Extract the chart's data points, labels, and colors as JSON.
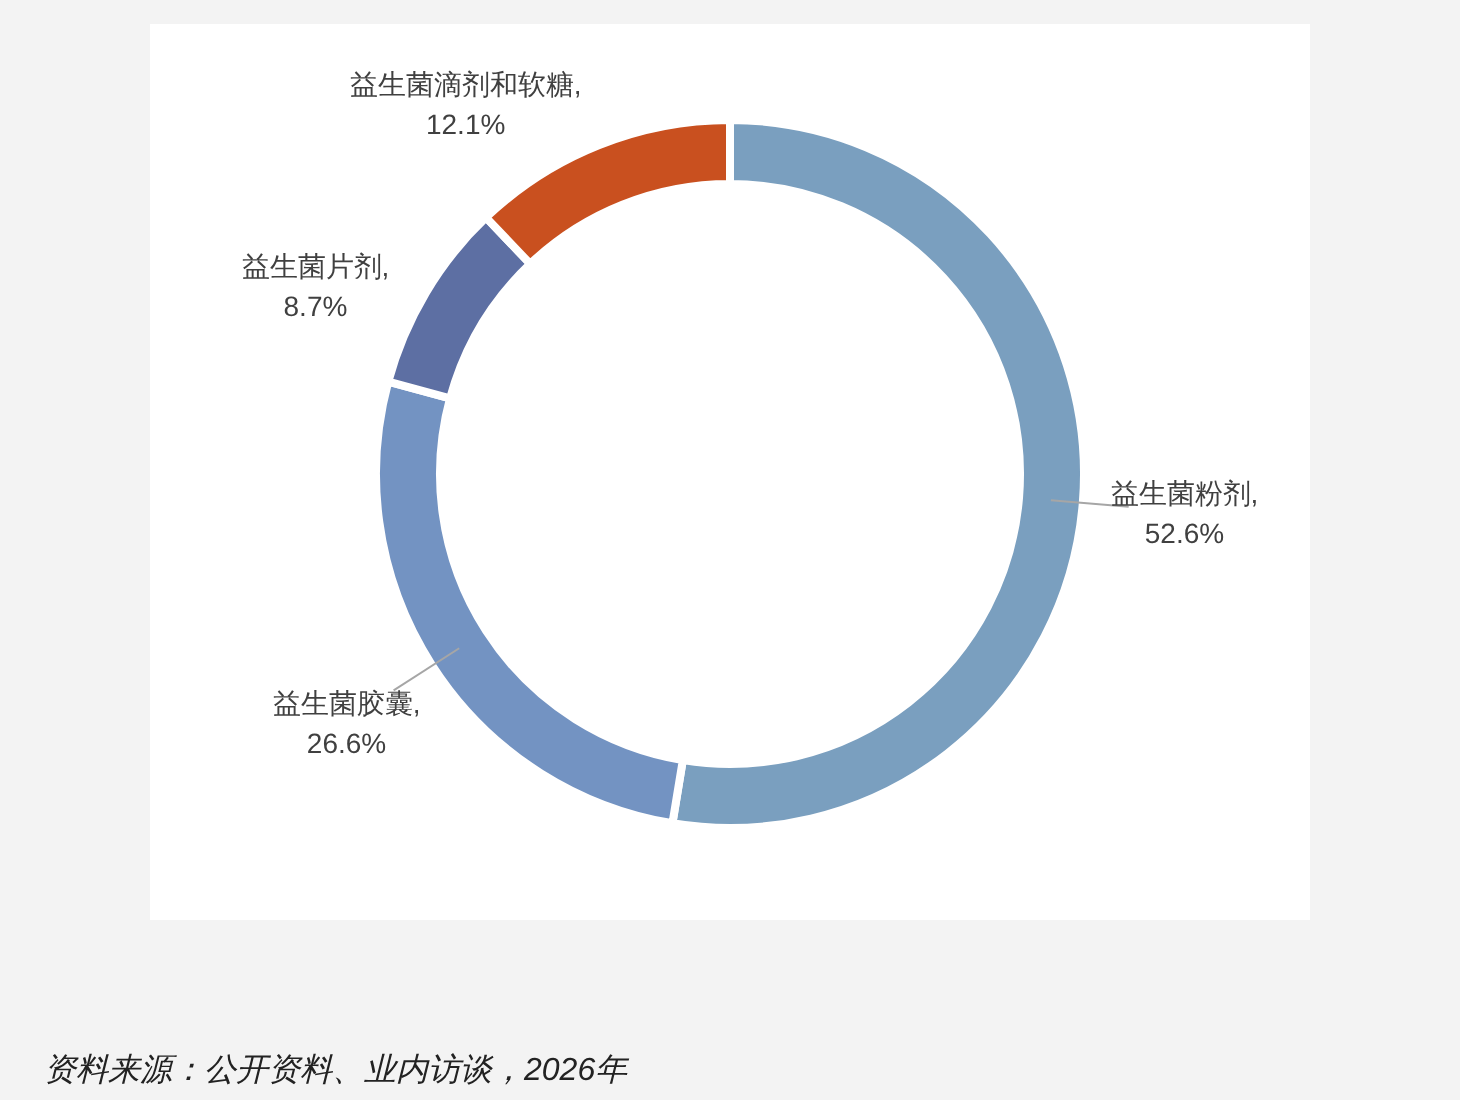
{
  "chart_data": {
    "type": "donut",
    "categories": [
      "益生菌粉剂",
      "益生菌胶囊",
      "益生菌片剂",
      "益生菌滴剂和软糖"
    ],
    "values": [
      52.6,
      26.6,
      8.7,
      12.1
    ],
    "value_labels": [
      ", 52.6%",
      ", 26.6%",
      ", 8.7%",
      ", 12.1%"
    ],
    "colors": [
      "#7a9fbf",
      "#7393c2",
      "#5d6fa3",
      "#c9501f"
    ],
    "annotations": [
      "资料来源：公开资料、业内访谈，2026年"
    ]
  }
}
